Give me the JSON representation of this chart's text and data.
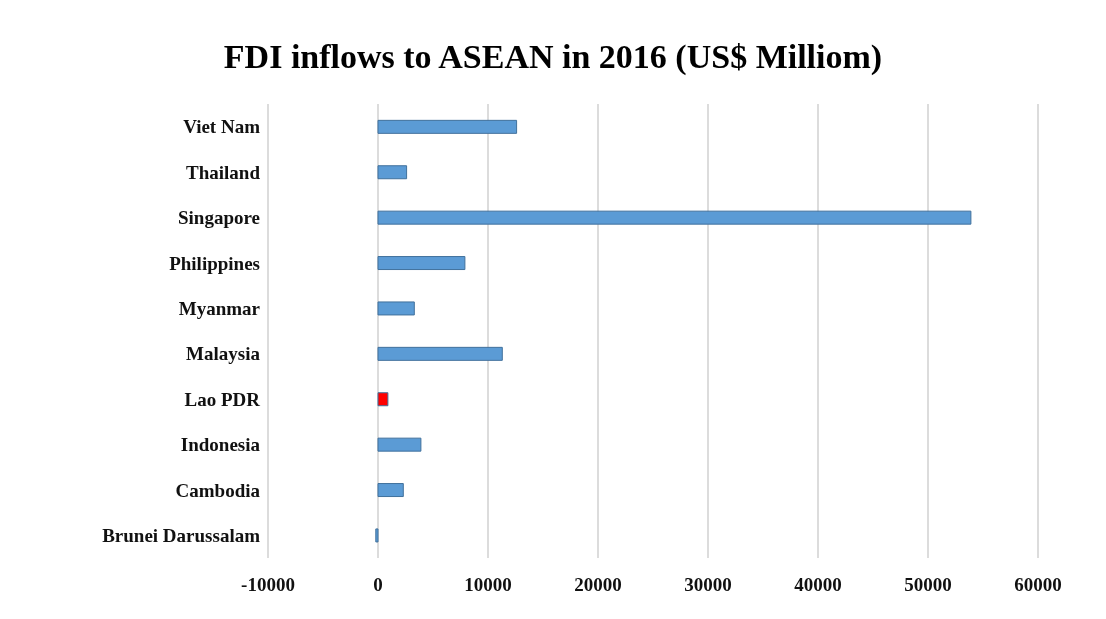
{
  "chart_data": {
    "type": "bar",
    "orientation": "horizontal",
    "title": "FDI inflows to ASEAN in 2016 (US$ Milliom)",
    "categories": [
      "Viet Nam",
      "Thailand",
      "Singapore",
      "Philippines",
      "Myanmar",
      "Malaysia",
      "Lao PDR",
      "Indonesia",
      "Cambodia",
      "Brunei Darussalam"
    ],
    "values": [
      12600,
      2600,
      53900,
      7900,
      3300,
      11300,
      900,
      3900,
      2300,
      -200
    ],
    "colors": [
      "#5b9bd5",
      "#5b9bd5",
      "#5b9bd5",
      "#5b9bd5",
      "#5b9bd5",
      "#5b9bd5",
      "#ff0000",
      "#5b9bd5",
      "#5b9bd5",
      "#5b9bd5"
    ],
    "xlim": [
      -10000,
      60000
    ],
    "xticks": [
      -10000,
      0,
      10000,
      20000,
      30000,
      40000,
      50000,
      60000
    ],
    "grid": "x"
  }
}
